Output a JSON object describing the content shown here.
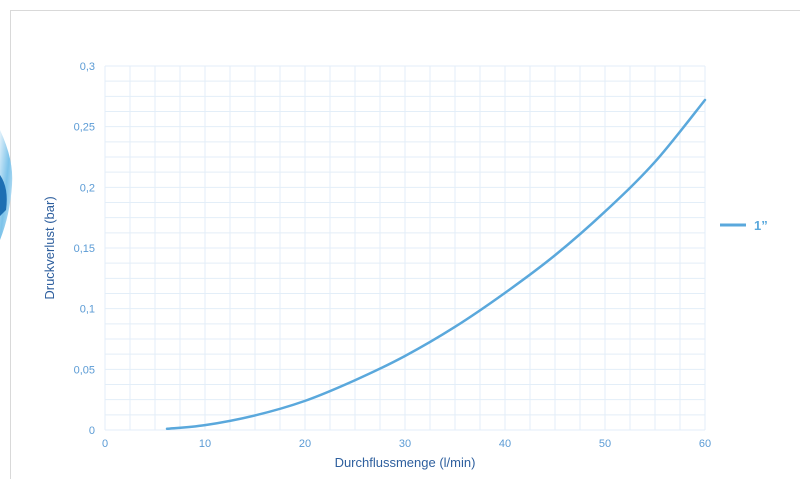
{
  "chart_data": {
    "type": "line",
    "title": "",
    "xlabel": "Durchflussmenge (l/min)",
    "ylabel": "Druckverlust (bar)",
    "xlim": [
      0,
      60
    ],
    "ylim": [
      0,
      0.3
    ],
    "x_ticks": [
      "0",
      "10",
      "20",
      "30",
      "40",
      "50",
      "60"
    ],
    "y_ticks": [
      "0",
      "0,05",
      "0,1",
      "0,15",
      "0,2",
      "0,25",
      "0,3"
    ],
    "grid": true,
    "legend_position": "right",
    "series": [
      {
        "name": "1”",
        "color": "#5aa8dc",
        "x": [
          6.2,
          10,
          15,
          20,
          25,
          30,
          35,
          40,
          45,
          50,
          55,
          60
        ],
        "y": [
          0.001,
          0.004,
          0.012,
          0.024,
          0.041,
          0.061,
          0.085,
          0.113,
          0.144,
          0.18,
          0.221,
          0.272
        ]
      }
    ]
  }
}
